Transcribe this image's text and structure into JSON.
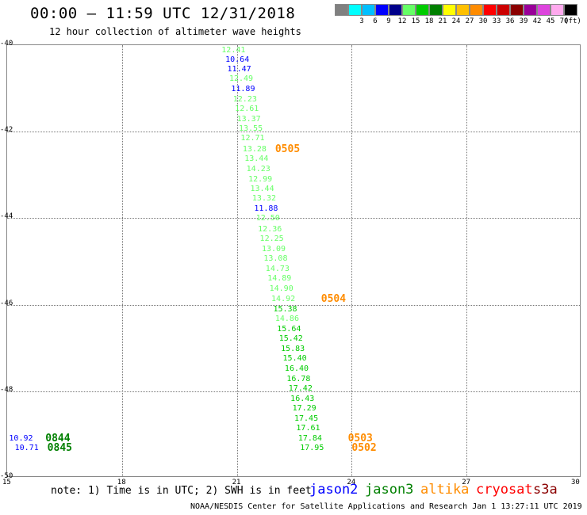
{
  "header": {
    "title": "00:00 – 11:59 UTC 12/31/2018",
    "subtitle": "12 hour collection of altimeter wave heights"
  },
  "color_scale": {
    "unit": "(ft)",
    "bins": [
      {
        "label": "",
        "color": "#808080"
      },
      {
        "label": "3",
        "color": "#00ffff"
      },
      {
        "label": "6",
        "color": "#00bfff"
      },
      {
        "label": "9",
        "color": "#0000ff"
      },
      {
        "label": "12",
        "color": "#00008b"
      },
      {
        "label": "15",
        "color": "#66ff66"
      },
      {
        "label": "18",
        "color": "#00cc00"
      },
      {
        "label": "21",
        "color": "#008000"
      },
      {
        "label": "24",
        "color": "#ffff00"
      },
      {
        "label": "27",
        "color": "#ffc000"
      },
      {
        "label": "30",
        "color": "#ff8c00"
      },
      {
        "label": "33",
        "color": "#ff0000"
      },
      {
        "label": "36",
        "color": "#cc0000"
      },
      {
        "label": "39",
        "color": "#8b0000"
      },
      {
        "label": "42",
        "color": "#990099"
      },
      {
        "label": "45",
        "color": "#dd44dd"
      },
      {
        "label": "70",
        "color": "#ffaaee"
      },
      {
        "label": "",
        "color": "#000000"
      }
    ]
  },
  "map": {
    "lat_range": [
      -50,
      -40
    ],
    "lon_range": [
      15,
      30
    ],
    "lat_labels": [
      "-40",
      "-42",
      "-44",
      "-46",
      "-48",
      "-50"
    ],
    "lon_labels": [
      "15",
      "18",
      "21",
      "24",
      "27",
      "30"
    ]
  },
  "wave_observations": [
    {
      "text": "12.41",
      "lon": 20.6,
      "lat": -40.12,
      "color": "#66ff66"
    },
    {
      "text": "10.64",
      "lon": 20.7,
      "lat": -40.34,
      "color": "#0000ff"
    },
    {
      "text": "11.47",
      "lon": 20.75,
      "lat": -40.56,
      "color": "#0000ff"
    },
    {
      "text": "12.49",
      "lon": 20.8,
      "lat": -40.79,
      "color": "#66ff66"
    },
    {
      "text": "11.89",
      "lon": 20.85,
      "lat": -41.03,
      "color": "#0000ff"
    },
    {
      "text": "12.23",
      "lon": 20.9,
      "lat": -41.26,
      "color": "#66ff66"
    },
    {
      "text": "12.61",
      "lon": 20.95,
      "lat": -41.49,
      "color": "#66ff66"
    },
    {
      "text": "13.37",
      "lon": 21.0,
      "lat": -41.72,
      "color": "#66ff66"
    },
    {
      "text": "13.55",
      "lon": 21.05,
      "lat": -41.95,
      "color": "#66ff66"
    },
    {
      "text": "12.71",
      "lon": 21.1,
      "lat": -42.17,
      "color": "#66ff66"
    },
    {
      "text": "13.28",
      "lon": 21.15,
      "lat": -42.41,
      "color": "#66ff66"
    },
    {
      "text": "13.44",
      "lon": 21.2,
      "lat": -42.64,
      "color": "#66ff66"
    },
    {
      "text": "14.23",
      "lon": 21.25,
      "lat": -42.87,
      "color": "#66ff66"
    },
    {
      "text": "12.99",
      "lon": 21.3,
      "lat": -43.11,
      "color": "#66ff66"
    },
    {
      "text": "13.44",
      "lon": 21.35,
      "lat": -43.34,
      "color": "#66ff66"
    },
    {
      "text": "13.32",
      "lon": 21.4,
      "lat": -43.56,
      "color": "#66ff66"
    },
    {
      "text": "11.88",
      "lon": 21.45,
      "lat": -43.79,
      "color": "#0000ff"
    },
    {
      "text": "12.50",
      "lon": 21.5,
      "lat": -44.02,
      "color": "#66ff66"
    },
    {
      "text": "12.36",
      "lon": 21.55,
      "lat": -44.26,
      "color": "#66ff66"
    },
    {
      "text": "12.25",
      "lon": 21.6,
      "lat": -44.49,
      "color": "#66ff66"
    },
    {
      "text": "13.09",
      "lon": 21.65,
      "lat": -44.72,
      "color": "#66ff66"
    },
    {
      "text": "13.08",
      "lon": 21.7,
      "lat": -44.95,
      "color": "#66ff66"
    },
    {
      "text": "14.73",
      "lon": 21.75,
      "lat": -45.18,
      "color": "#66ff66"
    },
    {
      "text": "14.89",
      "lon": 21.8,
      "lat": -45.41,
      "color": "#66ff66"
    },
    {
      "text": "14.90",
      "lon": 21.85,
      "lat": -45.64,
      "color": "#66ff66"
    },
    {
      "text": "14.92",
      "lon": 21.9,
      "lat": -45.87,
      "color": "#66ff66"
    },
    {
      "text": "15.38",
      "lon": 21.95,
      "lat": -46.11,
      "color": "#00cc00"
    },
    {
      "text": "14.86",
      "lon": 22.0,
      "lat": -46.34,
      "color": "#66ff66"
    },
    {
      "text": "15.64",
      "lon": 22.05,
      "lat": -46.57,
      "color": "#00cc00"
    },
    {
      "text": "15.42",
      "lon": 22.1,
      "lat": -46.8,
      "color": "#00cc00"
    },
    {
      "text": "15.83",
      "lon": 22.15,
      "lat": -47.03,
      "color": "#00cc00"
    },
    {
      "text": "15.40",
      "lon": 22.2,
      "lat": -47.26,
      "color": "#00cc00"
    },
    {
      "text": "16.40",
      "lon": 22.25,
      "lat": -47.49,
      "color": "#00cc00"
    },
    {
      "text": "16.78",
      "lon": 22.3,
      "lat": -47.72,
      "color": "#00cc00"
    },
    {
      "text": "17.42",
      "lon": 22.35,
      "lat": -47.95,
      "color": "#00cc00"
    },
    {
      "text": "16.43",
      "lon": 22.4,
      "lat": -48.18,
      "color": "#00cc00"
    },
    {
      "text": "17.29",
      "lon": 22.45,
      "lat": -48.41,
      "color": "#00cc00"
    },
    {
      "text": "17.45",
      "lon": 22.5,
      "lat": -48.64,
      "color": "#00cc00"
    },
    {
      "text": "17.61",
      "lon": 22.55,
      "lat": -48.87,
      "color": "#00cc00"
    },
    {
      "text": "17.84",
      "lon": 22.6,
      "lat": -49.1,
      "color": "#00cc00"
    },
    {
      "text": "17.95",
      "lon": 22.65,
      "lat": -49.33,
      "color": "#00cc00"
    },
    {
      "text": "10.92",
      "lon": 15.05,
      "lat": -49.1,
      "color": "#0000ff"
    },
    {
      "text": "10.71",
      "lon": 15.2,
      "lat": -49.32,
      "color": "#0000ff"
    }
  ],
  "time_labels": [
    {
      "text": "0505",
      "lon": 22.0,
      "lat": -42.41,
      "color": "#ff8c00"
    },
    {
      "text": "0504",
      "lon": 23.2,
      "lat": -45.87,
      "color": "#ff8c00"
    },
    {
      "text": "0503",
      "lon": 23.9,
      "lat": -49.1,
      "color": "#ff8c00"
    },
    {
      "text": "0502",
      "lon": 24.0,
      "lat": -49.33,
      "color": "#ff8c00"
    },
    {
      "text": "0844",
      "lon": 16.0,
      "lat": -49.1,
      "color": "#008000"
    },
    {
      "text": "0845",
      "lon": 16.05,
      "lat": -49.32,
      "color": "#008000"
    }
  ],
  "footer": {
    "note": "note: 1) Time is in UTC; 2) SWH is in feet",
    "satellites": [
      {
        "name": "jason2",
        "color": "#0000ff"
      },
      {
        "name": "jason3",
        "color": "#008000"
      },
      {
        "name": "altika",
        "color": "#ff8c00"
      },
      {
        "name": "cryosat",
        "color": "#ff0000"
      },
      {
        "name": "s3a",
        "color": "#8b0000"
      }
    ],
    "credit": "NOAA/NESDIS Center for Satellite Applications and Research   Jan  1 13:27:11 UTC 2019"
  }
}
